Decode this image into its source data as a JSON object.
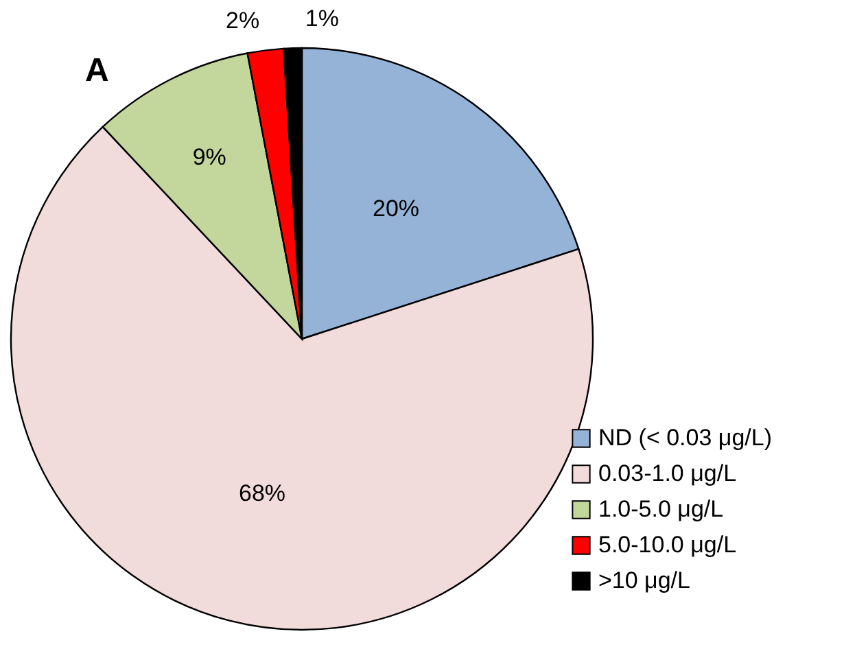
{
  "chart_data": {
    "type": "pie",
    "title": "A",
    "categories": [
      "ND (< 0.03 μg/L)",
      "0.03-1.0 μg/L",
      "1.0-5.0 μg/L",
      "5.0-10.0 μg/L",
      ">10 μg/L"
    ],
    "values": [
      20,
      68,
      9,
      2,
      1
    ],
    "colors": [
      "#95b3d7",
      "#f2dcdb",
      "#c3d69b",
      "#ff0000",
      "#000000"
    ],
    "value_labels": [
      "20%",
      "68%",
      "9%",
      "2%",
      "1%"
    ],
    "legend": "bottom right"
  }
}
